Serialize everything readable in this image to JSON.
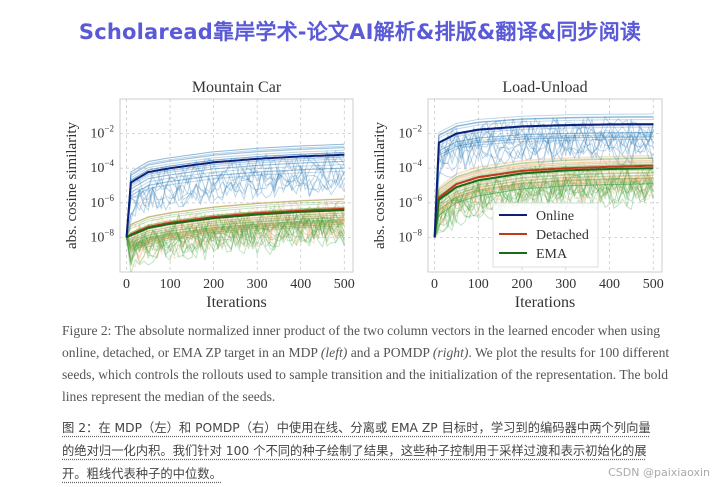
{
  "banner": "Scholaread靠岸学术-论文AI解析&排版&翻译&同步阅读",
  "chart_data": [
    {
      "type": "line",
      "title": "Mountain Car",
      "xlabel": "Iterations",
      "ylabel": "abs. cosine similarity",
      "xlim": [
        -15,
        520
      ],
      "ylim": [
        1e-10,
        1
      ],
      "yscale": "log",
      "xticks": [
        "0",
        "100",
        "200",
        "300",
        "400",
        "500"
      ],
      "yticks": [
        "10^-2",
        "10^-4",
        "10^-6",
        "10^-8"
      ],
      "grid": true,
      "series": [
        {
          "name": "Online",
          "color": "#0d1f7a",
          "band_color": "#2c7bb6",
          "x": [
            0,
            10,
            50,
            100,
            200,
            300,
            400,
            500
          ],
          "y": [
            1e-08,
            1.5e-05,
            6e-05,
            0.0001,
            0.00022,
            0.00035,
            0.00048,
            0.0006
          ]
        },
        {
          "name": "Detached",
          "color": "#c0391b",
          "band_color": "#f4a460",
          "x": [
            0,
            10,
            50,
            100,
            200,
            300,
            400,
            500
          ],
          "y": [
            1e-08,
            1.5e-08,
            4e-08,
            7e-08,
            1.5e-07,
            2.5e-07,
            3.5e-07,
            4.5e-07
          ]
        },
        {
          "name": "EMA",
          "color": "#1a6b1a",
          "band_color": "#3aa33a",
          "x": [
            0,
            10,
            50,
            100,
            200,
            300,
            400,
            500
          ],
          "y": [
            1e-08,
            1.3e-08,
            3.5e-08,
            6e-08,
            1.3e-07,
            2.1e-07,
            3e-07,
            3.8e-07
          ]
        }
      ]
    },
    {
      "type": "line",
      "title": "Load-Unload",
      "xlabel": "Iterations",
      "ylabel": "abs. cosine similarity",
      "xlim": [
        -15,
        520
      ],
      "ylim": [
        1e-10,
        1
      ],
      "yscale": "log",
      "xticks": [
        "0",
        "100",
        "200",
        "300",
        "400",
        "500"
      ],
      "yticks": [
        "10^-2",
        "10^-4",
        "10^-6",
        "10^-8"
      ],
      "grid": true,
      "legend": "center-bottom",
      "series": [
        {
          "name": "Online",
          "color": "#0d1f7a",
          "band_color": "#2c7bb6",
          "x": [
            0,
            10,
            50,
            100,
            200,
            300,
            400,
            500
          ],
          "y": [
            1e-08,
            0.003,
            0.01,
            0.017,
            0.026,
            0.031,
            0.034,
            0.035
          ]
        },
        {
          "name": "Detached",
          "color": "#c0391b",
          "band_color": "#f4a460",
          "x": [
            0,
            10,
            50,
            100,
            200,
            300,
            400,
            500
          ],
          "y": [
            1e-08,
            2e-06,
            1.2e-05,
            3e-05,
            7e-05,
            0.0001,
            0.00012,
            0.00014
          ]
        },
        {
          "name": "EMA",
          "color": "#1a6b1a",
          "band_color": "#3aa33a",
          "x": [
            0,
            10,
            50,
            100,
            200,
            300,
            400,
            500
          ],
          "y": [
            1e-08,
            1.5e-06,
            8e-06,
            2e-05,
            5e-05,
            7.5e-05,
            9e-05,
            0.0001
          ]
        }
      ]
    }
  ],
  "caption_en": "Figure 2: The absolute normalized inner product of the two column vectors in the learned encoder when using online, detached, or EMA ZP target in an MDP (left) and a POMDP (right). We plot the results for 100 different seeds, which controls the rollouts used to sample transition and the initialization of the representation. The bold lines represent the median of the seeds.",
  "caption_zh": "图 2：在 MDP（左）和 POMDP（右）中使用在线、分离或 EMA ZP 目标时，学习到的编码器中两个列向量的绝对归一化内积。我们针对 100 个不同的种子绘制了结果，这些种子控制用于采样过渡和表示初始化的展开。粗线代表种子的中位数。",
  "watermark": "CSDN @paixiaoxin"
}
